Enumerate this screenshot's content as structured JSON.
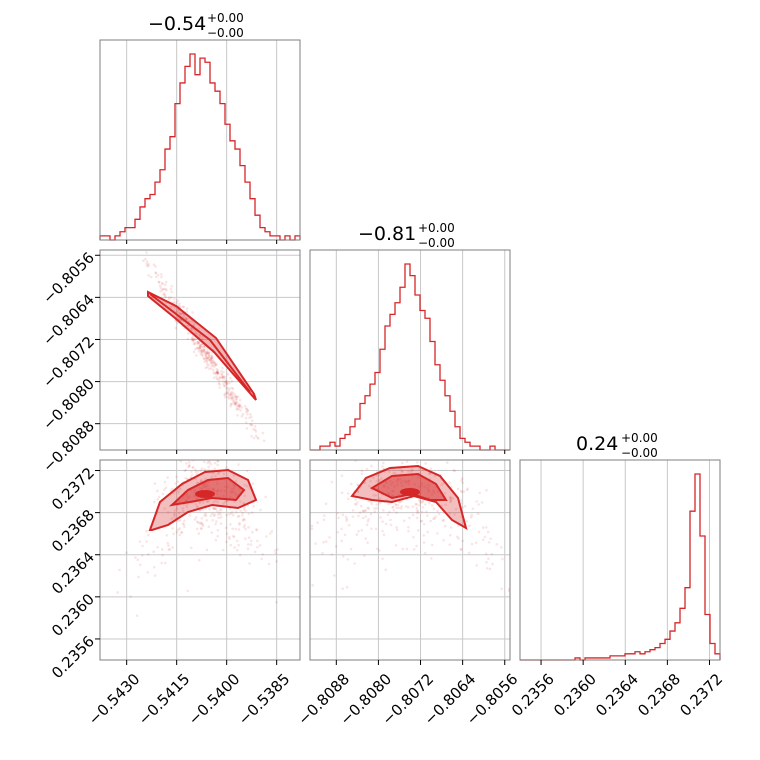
{
  "chart_data": {
    "type": "corner",
    "color": "#d62728",
    "parameters": [
      {
        "title": "−0.54",
        "err_plus": "+0.00",
        "err_minus": "−0.00",
        "range": [
          -0.5438,
          -0.5378
        ],
        "ticks": [
          -0.543,
          -0.5415,
          -0.54,
          -0.5385
        ],
        "tick_labels": [
          "−0.5430",
          "−0.5415",
          "−0.5400",
          "−0.5385"
        ],
        "hist_counts": [
          1,
          1,
          0,
          1,
          2,
          3,
          3,
          5,
          8,
          10,
          11,
          14,
          17,
          22,
          25,
          33,
          38,
          42,
          45,
          40,
          44,
          43,
          38,
          36,
          33,
          28,
          24,
          22,
          18,
          14,
          10,
          6,
          3,
          2,
          1,
          1,
          0,
          1,
          0,
          1
        ]
      },
      {
        "title": "−0.81",
        "err_plus": "+0.00",
        "err_minus": "−0.00",
        "range": [
          -0.8093,
          -0.8055
        ],
        "ticks": [
          -0.8088,
          -0.808,
          -0.8072,
          -0.8064,
          -0.8056
        ],
        "tick_labels": [
          "−0.8088",
          "−0.8080",
          "−0.8072",
          "−0.8064",
          "−0.8056"
        ],
        "hist_counts": [
          0,
          0,
          1,
          1,
          2,
          1,
          3,
          4,
          6,
          8,
          12,
          14,
          17,
          20,
          26,
          32,
          35,
          38,
          42,
          48,
          45,
          40,
          36,
          34,
          28,
          22,
          18,
          14,
          10,
          6,
          3,
          2,
          1,
          1,
          0,
          0,
          1,
          0,
          0,
          0
        ]
      },
      {
        "title": "0.24",
        "err_plus": "+0.00",
        "err_minus": "−0.00",
        "range": [
          0.2354,
          0.2373
        ],
        "ticks": [
          0.2356,
          0.236,
          0.2364,
          0.2368,
          0.2372
        ],
        "tick_labels": [
          "0.2356",
          "0.2360",
          "0.2364",
          "0.2368",
          "0.2372"
        ],
        "hist_counts": [
          0,
          0,
          0,
          0,
          0,
          0,
          0,
          0,
          0,
          0,
          0,
          1,
          0,
          1,
          1,
          1,
          1,
          1,
          2,
          2,
          2,
          3,
          3,
          4,
          3,
          4,
          5,
          6,
          8,
          10,
          14,
          18,
          25,
          35,
          72,
          90,
          60,
          22,
          8,
          3
        ]
      }
    ],
    "pairs": [
      {
        "row": 1,
        "col": 0,
        "relation": "negative linear correlation"
      },
      {
        "row": 2,
        "col": 0,
        "relation": "arched, concave-down"
      },
      {
        "row": 2,
        "col": 1,
        "relation": "arched, concave-down"
      }
    ]
  }
}
